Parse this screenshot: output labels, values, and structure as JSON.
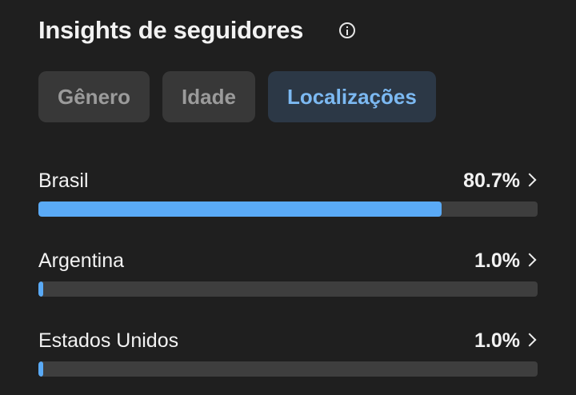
{
  "header": {
    "title": "Insights de seguidores"
  },
  "tabs": [
    "Gênero",
    "Idade",
    "Localizações"
  ],
  "active_tab": 2,
  "locations": {
    "xlim": [
      0,
      100
    ],
    "items": [
      {
        "name": "Brasil",
        "value": 80.7,
        "value_label": "80.7%"
      },
      {
        "name": "Argentina",
        "value": 1.0,
        "value_label": "1.0%"
      },
      {
        "name": "Estados Unidos",
        "value": 1.0,
        "value_label": "1.0%"
      }
    ]
  }
}
